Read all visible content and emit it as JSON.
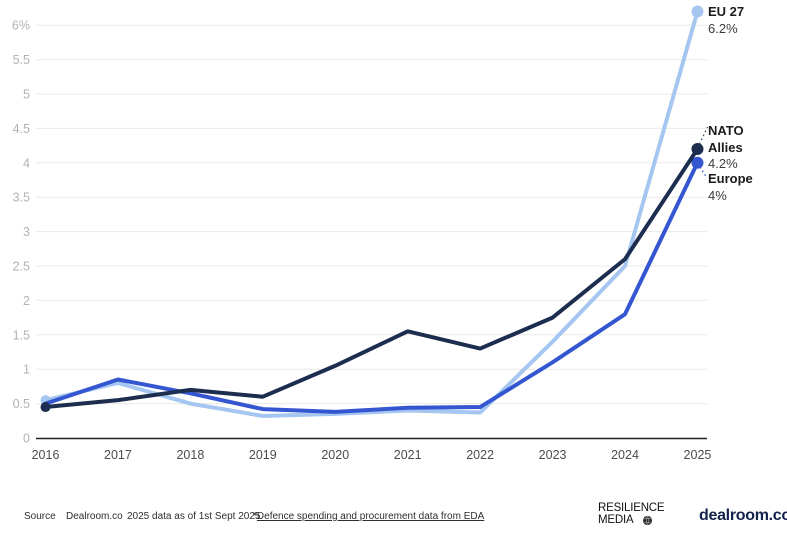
{
  "chart_data": {
    "type": "line",
    "title": "",
    "xlabel": "",
    "ylabel": "",
    "grid": true,
    "ylim": [
      0,
      6.35
    ],
    "legend_position": "end-of-line-annotations",
    "categories": [
      "2016",
      "2017",
      "2018",
      "2019",
      "2020",
      "2021",
      "2022",
      "2023",
      "2024",
      "2025"
    ],
    "series": [
      {
        "name": "EU 27",
        "color": "#a5c6f0",
        "marker_start": true,
        "marker_end": true,
        "values": [
          0.55,
          0.8,
          0.5,
          0.32,
          0.35,
          0.4,
          0.37,
          1.4,
          2.5,
          6.2
        ]
      },
      {
        "name": "Europe",
        "color": "#3456d0",
        "marker_start": false,
        "marker_end": true,
        "values": [
          0.5,
          0.85,
          0.65,
          0.42,
          0.38,
          0.44,
          0.45,
          1.1,
          1.8,
          4.0
        ]
      },
      {
        "name": "NATO Allies",
        "color": "#1c2d4f",
        "marker_start": true,
        "marker_end": true,
        "values": [
          0.45,
          0.55,
          0.7,
          0.6,
          1.05,
          1.55,
          1.3,
          1.75,
          2.6,
          4.2
        ]
      }
    ],
    "y_ticks": [
      {
        "label": "6%",
        "value": 6
      },
      {
        "label": "5.5",
        "value": 5.5
      },
      {
        "label": "5",
        "value": 5
      },
      {
        "label": "4.5",
        "value": 4.5
      },
      {
        "label": "4",
        "value": 4
      },
      {
        "label": "3.5",
        "value": 3.5
      },
      {
        "label": "3",
        "value": 3
      },
      {
        "label": "2.5",
        "value": 2.5
      },
      {
        "label": "2",
        "value": 2
      },
      {
        "label": "1.5",
        "value": 1.5
      },
      {
        "label": "1",
        "value": 1
      },
      {
        "label": "0.5",
        "value": 0.5
      },
      {
        "label": "0",
        "value": 0
      }
    ]
  },
  "annotations": {
    "eu27": {
      "label": "EU 27",
      "value": "6.2%"
    },
    "nato": {
      "label": "NATO Allies",
      "value": "4.2%"
    },
    "europe": {
      "label": "Europe",
      "value": "4%"
    }
  },
  "footer": {
    "source_label": "Source",
    "source_value": "Dealroom.co",
    "note": "2025 data as of 1st Sept 2025",
    "link_prefix": "*",
    "link_text": "Defence spending and procurement data from EDA"
  },
  "logos": {
    "resilience_line1": "RESILIENCE",
    "resilience_line2": "MEDIA",
    "dealroom": "dealroom.co"
  },
  "colors": {
    "grid": "#eaeaea",
    "y_tick_text": "#b2b2b2",
    "x_tick_text": "#4c4c4c",
    "axis": "#202020",
    "leader_nato": "#44506b",
    "leader_europe": "#3456d0"
  }
}
